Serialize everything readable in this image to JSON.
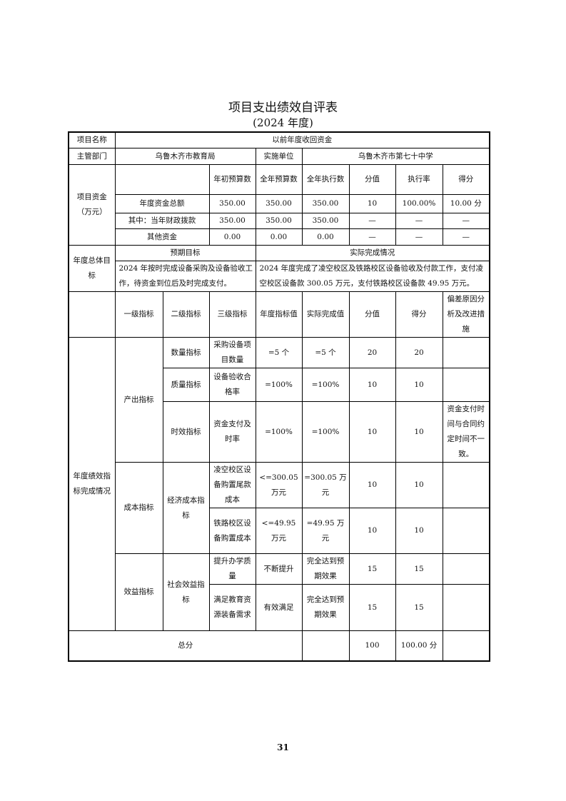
{
  "title": "项目支出绩效自评表",
  "subtitle": "(2024 年度)",
  "project": {
    "name_label": "项目名称",
    "name": "以前年度收回资金",
    "dept_label": "主管部门",
    "dept": "乌鲁木齐市教育局",
    "unit_label": "实施单位",
    "unit": "乌鲁木齐市第七十中学"
  },
  "funds": {
    "label": "项目资金（万元）",
    "headers": [
      "年初预算数",
      "全年预算数",
      "全年执行数",
      "分值",
      "执行率",
      "得分"
    ],
    "rows": [
      {
        "name": "年度资金总额",
        "cells": [
          "350.00",
          "350.00",
          "350.00",
          "10",
          "100.00%",
          "10.00 分"
        ]
      },
      {
        "name": "其中：当年财政拨款",
        "cells": [
          "350.00",
          "350.00",
          "350.00",
          "—",
          "—",
          "—"
        ]
      },
      {
        "name": "其他资金",
        "cells": [
          "0.00",
          "0.00",
          "0.00",
          "—",
          "—",
          "—"
        ]
      }
    ]
  },
  "goals": {
    "label": "年度总体目标",
    "expected_label": "预期目标",
    "actual_label": "实际完成情况",
    "expected": "2024 年按时完成设备采购及设备验收工作，待资金到位后及时完成支付。",
    "actual": "2024 年度完成了凌空校区及铁路校区设备验收及付款工作，支付凌空校区设备款 300.05 万元，支付铁路校区设备款 49.95 万元。"
  },
  "indicators": {
    "label": "年度绩效指标完成情况",
    "headers": [
      "一级指标",
      "二级指标",
      "三级指标",
      "年度指标值",
      "实际完成值",
      "分值",
      "得分",
      "偏差原因分析及改进措施"
    ],
    "groups": [
      {
        "level1": "产出指标",
        "level2": [
          "数量指标",
          "质量指标",
          "时效指标"
        ]
      },
      {
        "level1": "成本指标",
        "level2": [
          "经济成本指标"
        ]
      },
      {
        "level1": "效益指标",
        "level2": [
          "社会效益指标"
        ]
      }
    ],
    "rows": [
      {
        "level3": "采购设备项目数量",
        "target": "=5 个",
        "actual": "=5 个",
        "weight": "20",
        "score": "20",
        "reason": ""
      },
      {
        "level3": "设备验收合格率",
        "target": "=100%",
        "actual": "=100%",
        "weight": "10",
        "score": "10",
        "reason": ""
      },
      {
        "level3": "资金支付及时率",
        "target": "=100%",
        "actual": "=100%",
        "weight": "10",
        "score": "10",
        "reason": "资金支付时间与合同约定时间不一致。"
      },
      {
        "level3": "凌空校区设备购置尾款成本",
        "target": "<=300.05 万元",
        "actual": "=300.05 万元",
        "weight": "10",
        "score": "10",
        "reason": ""
      },
      {
        "level3": "铁路校区设备购置成本",
        "target": "<=49.95 万元",
        "actual": "=49.95 万元",
        "weight": "10",
        "score": "10",
        "reason": ""
      },
      {
        "level3": "提升办学质量",
        "target": "不断提升",
        "actual": "完全达到预期效果",
        "weight": "15",
        "score": "15",
        "reason": ""
      },
      {
        "level3": "满足教育资源装备需求",
        "target": "有效满足",
        "actual": "完全达到预期效果",
        "weight": "15",
        "score": "15",
        "reason": ""
      }
    ]
  },
  "total": {
    "label": "总分",
    "weight": "100",
    "score": "100.00 分"
  },
  "page_number": "31"
}
